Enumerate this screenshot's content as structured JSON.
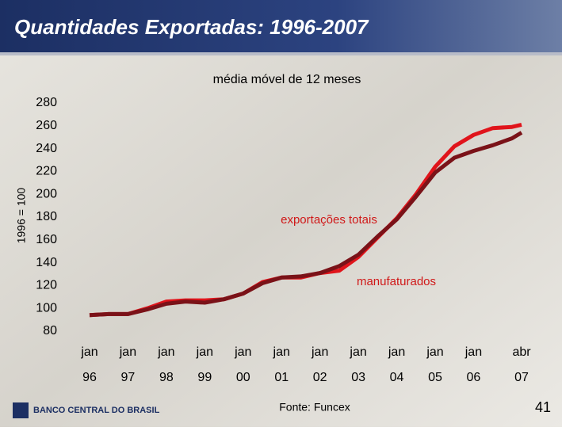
{
  "slide_title": "Quantidades Exportadas: 1996-2007",
  "footer": {
    "source": "Fonte: Funcex",
    "page": "41",
    "logo": "BANCO CENTRAL DO BRASIL"
  },
  "chart_data": {
    "type": "line",
    "subtitle": "média móvel de 12 meses",
    "y_label": "1996 = 100",
    "annotations": [
      "exportações totais",
      "manufaturados"
    ],
    "x": [
      "1996-01",
      "1996-07",
      "1997-01",
      "1997-07",
      "1998-01",
      "1998-07",
      "1999-01",
      "1999-07",
      "2000-01",
      "2000-07",
      "2001-01",
      "2001-07",
      "2002-01",
      "2002-07",
      "2003-01",
      "2003-07",
      "2004-01",
      "2004-07",
      "2005-01",
      "2005-07",
      "2006-01",
      "2006-07",
      "2007-01",
      "2007-04"
    ],
    "xlim": [
      "1996-01",
      "2007-04"
    ],
    "xticks": [
      {
        "value": "1996-01",
        "label": [
          "jan",
          "96"
        ]
      },
      {
        "value": "1997-01",
        "label": [
          "jan",
          "97"
        ]
      },
      {
        "value": "1998-01",
        "label": [
          "jan",
          "98"
        ]
      },
      {
        "value": "1999-01",
        "label": [
          "jan",
          "99"
        ]
      },
      {
        "value": "2000-01",
        "label": [
          "jan",
          "00"
        ]
      },
      {
        "value": "2001-01",
        "label": [
          "jan",
          "01"
        ]
      },
      {
        "value": "2002-01",
        "label": [
          "jan",
          "02"
        ]
      },
      {
        "value": "2003-01",
        "label": [
          "jan",
          "03"
        ]
      },
      {
        "value": "2004-01",
        "label": [
          "jan",
          "04"
        ]
      },
      {
        "value": "2005-01",
        "label": [
          "jan",
          "05"
        ]
      },
      {
        "value": "2006-01",
        "label": [
          "jan",
          "06"
        ]
      },
      {
        "value": "2007-04",
        "label": [
          "abr",
          "07"
        ]
      }
    ],
    "ylim": [
      80,
      280
    ],
    "yticks": [
      80,
      100,
      120,
      140,
      160,
      180,
      200,
      220,
      240,
      260,
      280
    ],
    "series": [
      {
        "name": "exportações totais",
        "color": "#e0141b",
        "values": [
          94,
          95,
          95,
          100,
          106,
          107,
          107,
          108,
          113,
          123,
          127,
          127,
          131,
          133,
          145,
          162,
          179,
          200,
          224,
          242,
          252,
          258,
          259,
          261
        ]
      },
      {
        "name": "manufaturados",
        "color": "#7a1218",
        "values": [
          94,
          95,
          95,
          99,
          104,
          106,
          105,
          108,
          113,
          122,
          127,
          128,
          131,
          137,
          147,
          163,
          178,
          198,
          219,
          232,
          238,
          243,
          249,
          254
        ]
      }
    ]
  }
}
